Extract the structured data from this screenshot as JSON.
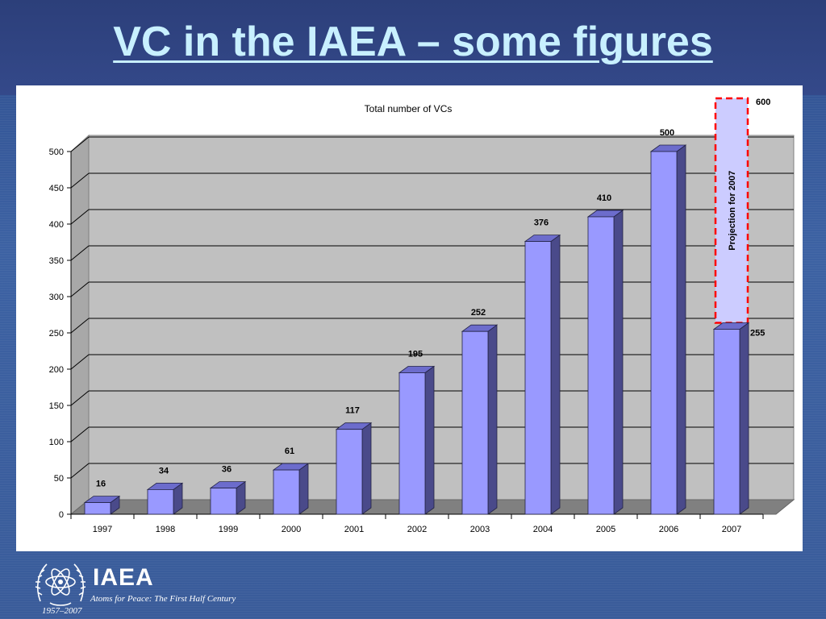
{
  "slide": {
    "title": "VC in the IAEA – some figures"
  },
  "footer": {
    "org_name": "IAEA",
    "tagline": "Atoms for Peace: The First Half Century",
    "years": "1957–2007"
  },
  "colors": {
    "bar_front": "#9999ff",
    "bar_side": "#4a4a8a",
    "bar_top": "#6c6ccc",
    "plot_wall": "#c0c0c0",
    "plot_floor": "#808080",
    "projection_fill": "#ccccff",
    "projection_border": "#ff0000",
    "background": "#3a5c96",
    "title": "#c8f0ff"
  },
  "chart_data": {
    "type": "bar",
    "title": "Total number of VCs",
    "xlabel": "",
    "ylabel": "",
    "categories": [
      "1997",
      "1998",
      "1999",
      "2000",
      "2001",
      "2002",
      "2003",
      "2004",
      "2005",
      "2006",
      "2007"
    ],
    "values": [
      16,
      34,
      36,
      61,
      117,
      195,
      252,
      376,
      410,
      500,
      255
    ],
    "ylim": [
      0,
      500
    ],
    "yticks": [
      0,
      50,
      100,
      150,
      200,
      250,
      300,
      350,
      400,
      450,
      500
    ],
    "grid": true,
    "legend": "none",
    "style": "3d",
    "projection": {
      "category": "2007",
      "value": 600,
      "label": "Projection for 2007",
      "value_label": "600"
    }
  }
}
